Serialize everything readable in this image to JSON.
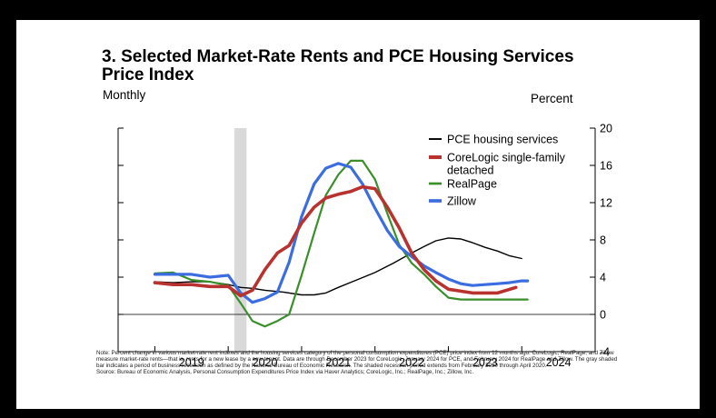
{
  "title": "3. Selected Market-Rate Rents and PCE Housing Services Price Index",
  "subtitle": "Monthly",
  "right_axis_label": "Percent",
  "notes": [
    "Note: Percent change in various market-rate rent indexes and the housing services category of the personal consumption expenditures (PCE) price index from 12 months ago. CoreLogic, RealPage, and Zillow measure market-rate rents—that is, rents for a new lease by a new tenant. Data are through December 2023 for CoreLogic, January 2024 for PCE, and February 2024 for RealPage and Zillow. The gray shaded bar indicates a period of business recession as defined by the National Bureau of Economic Research. The shaded recession period extends from February 2020 through April 2020.",
    "Source: Bureau of Economic Analysis, Personal Consumption Expenditures Price Index via Haver Analytics; CoreLogic, Inc.; RealPage, Inc.; Zillow, Inc."
  ],
  "chart_data": {
    "type": "line",
    "title": "3. Selected Market-Rate Rents and PCE Housing Services Price Index",
    "ylabel": "Percent",
    "ylim": [
      -4,
      20
    ],
    "yticks": [
      -4,
      0,
      4,
      8,
      12,
      16,
      20
    ],
    "xlim": [
      2018.5,
      2025.0
    ],
    "xticks": [
      "2019",
      "2020",
      "2021",
      "2022",
      "2023",
      "2024"
    ],
    "grid": false,
    "legend": "top-right",
    "recession_shading": {
      "start": 2020.083,
      "end": 2020.25
    },
    "series": [
      {
        "name": "PCE housing services",
        "color": "#000000",
        "x": [
          2019.0,
          2019.25,
          2019.5,
          2019.75,
          2020.0,
          2020.17,
          2020.33,
          2020.5,
          2020.75,
          2021.0,
          2021.17,
          2021.33,
          2021.5,
          2021.75,
          2022.0,
          2022.25,
          2022.5,
          2022.67,
          2022.83,
          2023.0,
          2023.17,
          2023.33,
          2023.5,
          2023.67,
          2023.83,
          2024.0
        ],
        "y": [
          3.5,
          3.4,
          3.5,
          3.5,
          3.2,
          2.9,
          2.8,
          2.6,
          2.4,
          2.1,
          2.1,
          2.3,
          2.9,
          3.7,
          4.5,
          5.5,
          6.6,
          7.3,
          7.9,
          8.2,
          8.1,
          7.7,
          7.2,
          6.8,
          6.3,
          6.0
        ]
      },
      {
        "name": "CoreLogic single-family detached",
        "color": "#b8332f",
        "x": [
          2019.0,
          2019.25,
          2019.5,
          2019.75,
          2020.0,
          2020.17,
          2020.33,
          2020.5,
          2020.67,
          2020.83,
          2021.0,
          2021.17,
          2021.33,
          2021.5,
          2021.67,
          2021.83,
          2022.0,
          2022.17,
          2022.33,
          2022.5,
          2022.67,
          2022.83,
          2023.0,
          2023.17,
          2023.33,
          2023.5,
          2023.67,
          2023.92
        ],
        "y": [
          3.4,
          3.2,
          3.2,
          3.0,
          3.0,
          2.0,
          2.6,
          4.8,
          6.6,
          7.4,
          9.8,
          11.5,
          12.5,
          12.9,
          13.2,
          13.7,
          13.5,
          11.5,
          9.3,
          6.6,
          4.8,
          3.6,
          2.7,
          2.5,
          2.3,
          2.3,
          2.3,
          2.9
        ]
      },
      {
        "name": "RealPage",
        "color": "#3a8f2a",
        "x": [
          2019.0,
          2019.25,
          2019.5,
          2019.75,
          2020.0,
          2020.17,
          2020.33,
          2020.5,
          2020.67,
          2020.83,
          2021.0,
          2021.17,
          2021.33,
          2021.5,
          2021.67,
          2021.83,
          2022.0,
          2022.17,
          2022.33,
          2022.5,
          2022.67,
          2022.83,
          2023.0,
          2023.17,
          2023.33,
          2023.5,
          2023.67,
          2023.83,
          2024.0,
          2024.08
        ],
        "y": [
          4.4,
          4.5,
          3.7,
          3.5,
          3.1,
          1.2,
          -0.7,
          -1.3,
          -0.7,
          0.0,
          4.2,
          8.7,
          12.8,
          15.0,
          16.5,
          16.5,
          14.5,
          10.8,
          7.5,
          5.5,
          4.3,
          3.0,
          1.8,
          1.6,
          1.6,
          1.6,
          1.6,
          1.6,
          1.6,
          1.6
        ]
      },
      {
        "name": "Zillow",
        "color": "#3b6de0",
        "x": [
          2019.0,
          2019.25,
          2019.5,
          2019.75,
          2020.0,
          2020.17,
          2020.33,
          2020.5,
          2020.67,
          2020.83,
          2021.0,
          2021.17,
          2021.33,
          2021.5,
          2021.67,
          2021.83,
          2022.0,
          2022.17,
          2022.33,
          2022.5,
          2022.67,
          2022.83,
          2023.0,
          2023.17,
          2023.33,
          2023.5,
          2023.67,
          2023.83,
          2024.0,
          2024.08
        ],
        "y": [
          4.3,
          4.3,
          4.3,
          4.0,
          4.2,
          2.3,
          1.3,
          1.7,
          2.4,
          5.6,
          10.5,
          14.0,
          15.7,
          16.2,
          15.8,
          14.0,
          11.4,
          9.0,
          7.3,
          6.2,
          5.2,
          4.5,
          3.8,
          3.3,
          3.1,
          3.2,
          3.3,
          3.4,
          3.6,
          3.6
        ]
      }
    ]
  }
}
